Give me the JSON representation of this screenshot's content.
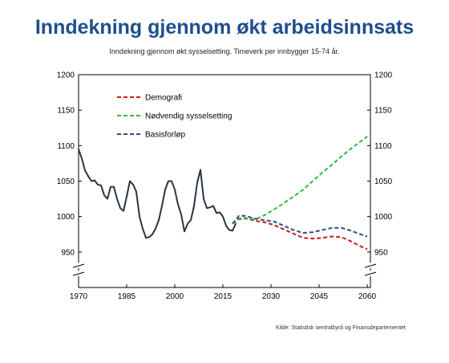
{
  "title": "Inndekning gjennom økt arbeidsinnsats",
  "subtitle": "Inndekning gjennom økt sysselsetting. Timeverk per innbygger 15-74 år.",
  "source": "Kilde: Statistisk sentralbyrå og Finansdepartementet",
  "chart_data": {
    "type": "line",
    "title": "Inndekning gjennom økt arbeidsinnsats",
    "subtitle": "Inndekning gjennom økt sysselsetting. Timeverk per innbygger 15-74 år.",
    "xlim": [
      1970,
      2061
    ],
    "ylim": [
      900,
      1200
    ],
    "axis_break_below": 950,
    "x_ticks": [
      1970,
      1985,
      2000,
      2015,
      2030,
      2045,
      2060
    ],
    "y_ticks": [
      950,
      1000,
      1050,
      1100,
      1150,
      1200
    ],
    "y_ticks_right": [
      950,
      1000,
      1050,
      1100,
      1150,
      1200
    ],
    "legend_position": "top-left",
    "grid": false,
    "series": [
      {
        "name": "",
        "color": "#2a3442",
        "style": "solid",
        "in_legend": false,
        "x": [
          1970,
          1971,
          1972,
          1973,
          1974,
          1975,
          1976,
          1977,
          1978,
          1979,
          1980,
          1981,
          1982,
          1983,
          1984,
          1985,
          1986,
          1987,
          1988,
          1989,
          1990,
          1991,
          1992,
          1993,
          1994,
          1995,
          1996,
          1997,
          1998,
          1999,
          2000,
          2001,
          2002,
          2003,
          2004,
          2005,
          2006,
          2007,
          2008,
          2009,
          2010,
          2011,
          2012,
          2013,
          2014,
          2015,
          2016,
          2017,
          2018,
          2019
        ],
        "y": [
          1095,
          1082,
          1065,
          1057,
          1050,
          1051,
          1045,
          1044,
          1030,
          1025,
          1042,
          1042,
          1025,
          1012,
          1008,
          1028,
          1050,
          1045,
          1035,
          1000,
          983,
          970,
          971,
          975,
          983,
          995,
          1015,
          1038,
          1050,
          1050,
          1038,
          1017,
          1003,
          979,
          990,
          995,
          1015,
          1048,
          1066,
          1025,
          1012,
          1013,
          1015,
          1005,
          1006,
          1000,
          987,
          981,
          980,
          990
        ]
      },
      {
        "name": "Demografi",
        "color": "#cc1a1a",
        "style": "dashed",
        "in_legend": true,
        "x": [
          2018,
          2020,
          2022,
          2025,
          2028,
          2031,
          2034,
          2037,
          2040,
          2043,
          2046,
          2049,
          2052,
          2055,
          2058,
          2060
        ],
        "y": [
          990,
          997,
          998,
          994,
          992,
          988,
          982,
          976,
          970,
          969,
          970,
          972,
          971,
          965,
          958,
          954
        ]
      },
      {
        "name": "Nødvendig sysselsetting",
        "color": "#2ebd3a",
        "style": "dashed",
        "in_legend": true,
        "x": [
          2018,
          2020,
          2022,
          2025,
          2028,
          2031,
          2034,
          2037,
          2040,
          2043,
          2046,
          2049,
          2052,
          2055,
          2058,
          2060
        ],
        "y": [
          990,
          996,
          997,
          996,
          1002,
          1010,
          1019,
          1028,
          1038,
          1050,
          1062,
          1073,
          1085,
          1096,
          1106,
          1113
        ]
      },
      {
        "name": "Basisforløp",
        "color": "#2c4f85",
        "style": "dashed",
        "in_legend": true,
        "x": [
          2018,
          2020,
          2022,
          2025,
          2028,
          2031,
          2034,
          2037,
          2040,
          2043,
          2046,
          2049,
          2052,
          2055,
          2058,
          2060
        ],
        "y": [
          990,
          1001,
          1001,
          997,
          995,
          993,
          987,
          981,
          977,
          978,
          981,
          984,
          984,
          980,
          975,
          972
        ]
      }
    ]
  }
}
